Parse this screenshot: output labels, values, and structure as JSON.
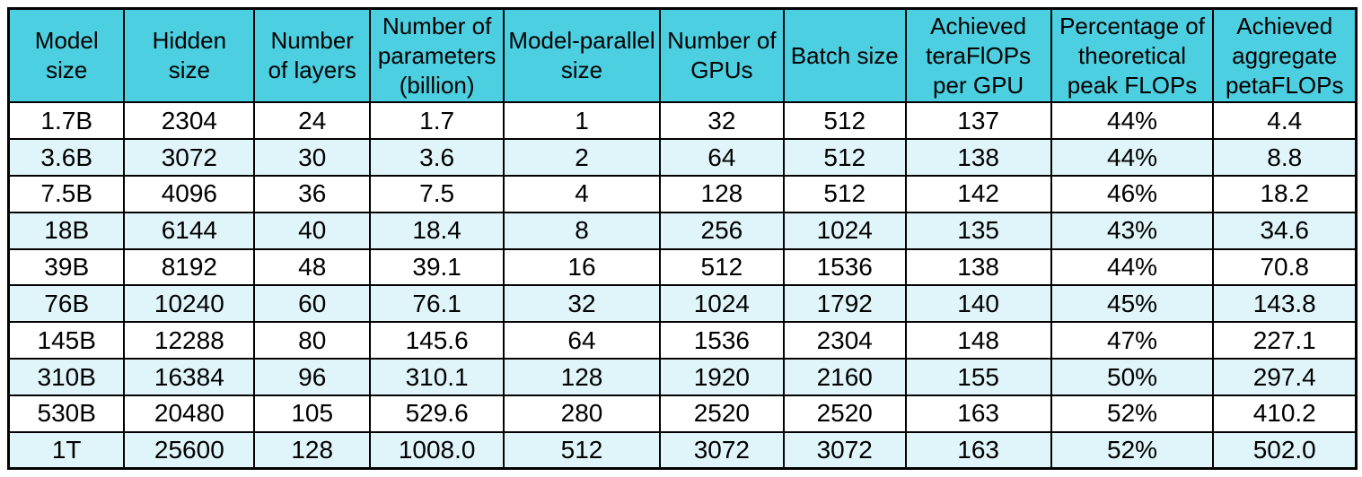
{
  "colors": {
    "header_bg": "#4CCFE0",
    "row_white": "#FFFFFF",
    "row_tint": "#E0F5F9",
    "border": "#000000",
    "text": "#000000"
  },
  "chart_data": {
    "type": "table",
    "columns": [
      "Model size",
      "Hidden size",
      "Number of layers",
      "Number of parameters (billion)",
      "Model-parallel size",
      "Number of GPUs",
      "Batch size",
      "Achieved teraFlOPs per GPU",
      "Percentage of theoretical peak FLOPs",
      "Achieved aggregate petaFLOPs"
    ],
    "rows": [
      [
        "1.7B",
        "2304",
        "24",
        "1.7",
        "1",
        "32",
        "512",
        "137",
        "44%",
        "4.4"
      ],
      [
        "3.6B",
        "3072",
        "30",
        "3.6",
        "2",
        "64",
        "512",
        "138",
        "44%",
        "8.8"
      ],
      [
        "7.5B",
        "4096",
        "36",
        "7.5",
        "4",
        "128",
        "512",
        "142",
        "46%",
        "18.2"
      ],
      [
        "18B",
        "6144",
        "40",
        "18.4",
        "8",
        "256",
        "1024",
        "135",
        "43%",
        "34.6"
      ],
      [
        "39B",
        "8192",
        "48",
        "39.1",
        "16",
        "512",
        "1536",
        "138",
        "44%",
        "70.8"
      ],
      [
        "76B",
        "10240",
        "60",
        "76.1",
        "32",
        "1024",
        "1792",
        "140",
        "45%",
        "143.8"
      ],
      [
        "145B",
        "12288",
        "80",
        "145.6",
        "64",
        "1536",
        "2304",
        "148",
        "47%",
        "227.1"
      ],
      [
        "310B",
        "16384",
        "96",
        "310.1",
        "128",
        "1920",
        "2160",
        "155",
        "50%",
        "297.4"
      ],
      [
        "530B",
        "20480",
        "105",
        "529.6",
        "280",
        "2520",
        "2520",
        "163",
        "52%",
        "410.2"
      ],
      [
        "1T",
        "25600",
        "128",
        "1008.0",
        "512",
        "3072",
        "3072",
        "163",
        "52%",
        "502.0"
      ]
    ]
  }
}
